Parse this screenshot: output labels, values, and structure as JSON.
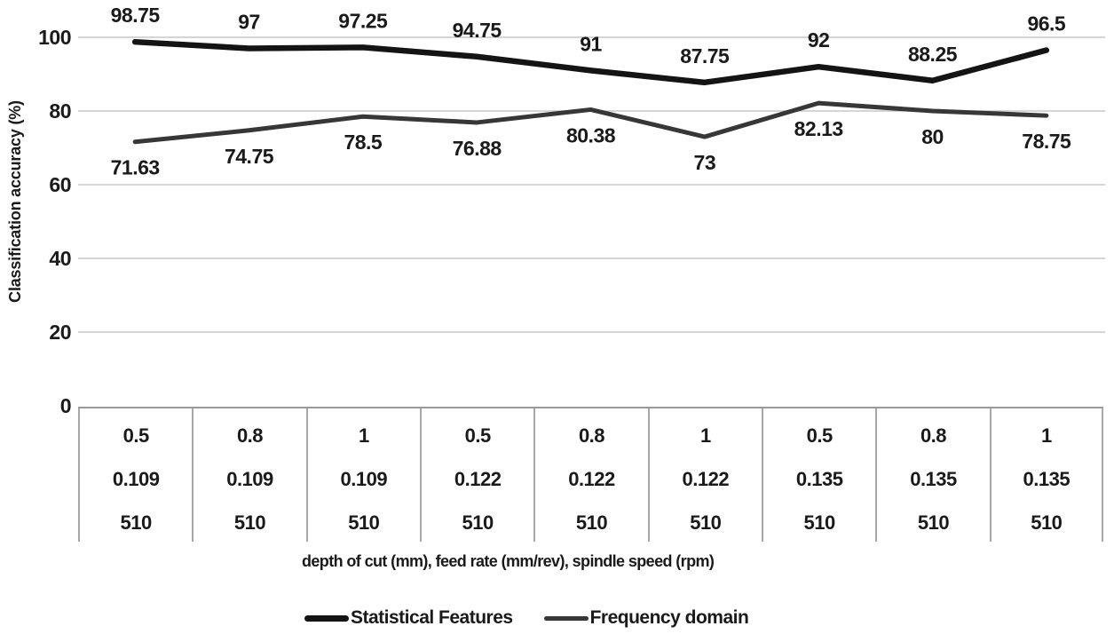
{
  "chart_data": {
    "type": "line",
    "title": "",
    "ylabel": "Classification accuracy (%)",
    "xlabel": "depth of cut (mm), feed rate (mm/rev), spindle speed (rpm)",
    "ylim": [
      0,
      100
    ],
    "yticks": [
      0,
      20,
      40,
      60,
      80,
      100
    ],
    "grid": true,
    "legend_position": "bottom",
    "categories": [
      [
        "0.5",
        "0.109",
        "510"
      ],
      [
        "0.8",
        "0.109",
        "510"
      ],
      [
        "1",
        "0.109",
        "510"
      ],
      [
        "0.5",
        "0.122",
        "510"
      ],
      [
        "0.8",
        "0.122",
        "510"
      ],
      [
        "1",
        "0.122",
        "510"
      ],
      [
        "0.5",
        "0.135",
        "510"
      ],
      [
        "0.8",
        "0.135",
        "510"
      ],
      [
        "1",
        "0.135",
        "510"
      ]
    ],
    "series": [
      {
        "name": "Statistical Features",
        "color": "#141414",
        "stroke_width": 6.5,
        "label_position": "above",
        "values": [
          98.75,
          97,
          97.25,
          94.75,
          91,
          87.75,
          92,
          88.25,
          96.5
        ]
      },
      {
        "name": "Frequency domain",
        "color": "#373737",
        "stroke_width": 5,
        "label_position": "below",
        "values": [
          71.63,
          74.75,
          78.5,
          76.88,
          80.38,
          73,
          82.13,
          80,
          78.75
        ]
      }
    ],
    "colors": {
      "gridline": "#c7c7c7",
      "table_border": "#9a9a9a",
      "text": "#1a1a1a",
      "background": "#ffffff"
    }
  }
}
